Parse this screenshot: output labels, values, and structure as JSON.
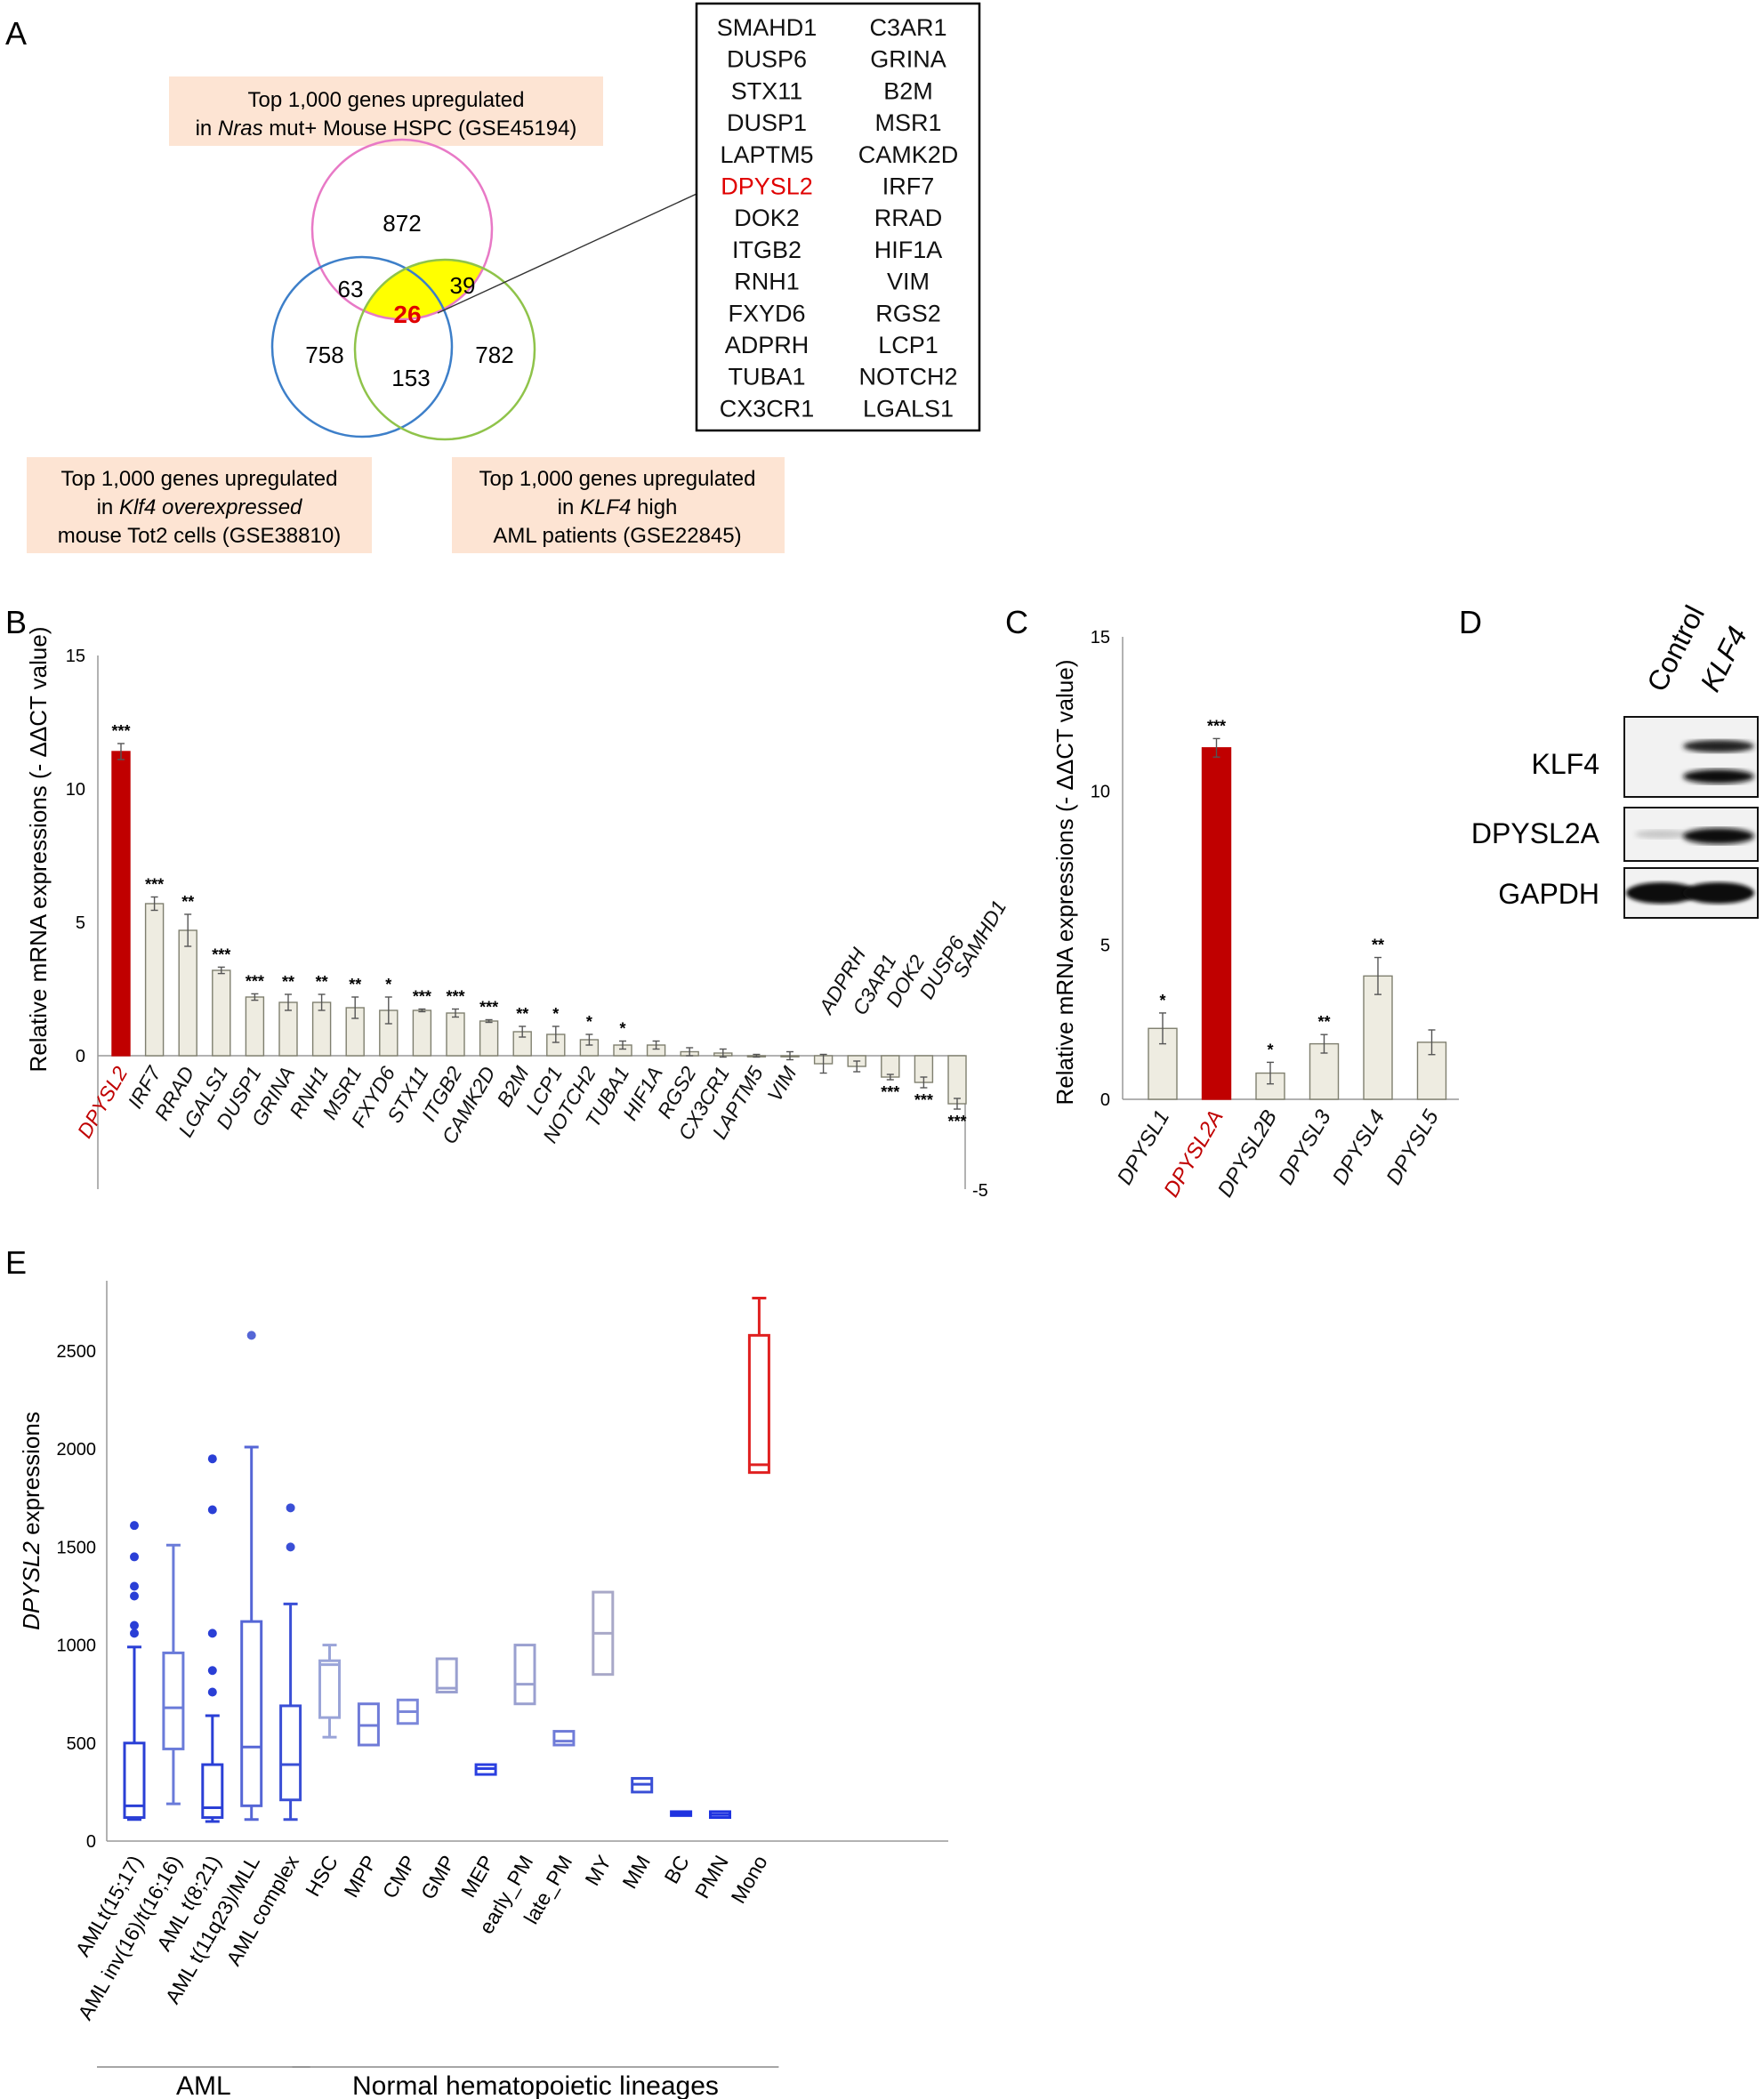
{
  "panels": {
    "A": "A",
    "B": "B",
    "C": "C",
    "D": "D",
    "E": "E"
  },
  "colors": {
    "red": "#c00000",
    "bar_fill": "#eeece1",
    "bar_stroke": "#7f7f6f",
    "pink": "#e879c6",
    "blue_circle": "#3d7fc9",
    "green": "#8fc34a",
    "yellow": "#ffff00",
    "label_bg": "#fde4d3",
    "box_blue": "#2e3ee0"
  },
  "panel_a": {
    "label_top": {
      "line1": "Top 1,000 genes upregulated",
      "line2_pre": "in ",
      "line2_ital": "Nras",
      "line2_post": " mut+ Mouse HSPC (GSE45194)"
    },
    "label_left": {
      "line1": "Top 1,000 genes upregulated",
      "line2_pre": "in ",
      "line2_ital": "Klf4 overexpressed",
      "line3": "mouse Tot2 cells (GSE38810)"
    },
    "label_right": {
      "line1": "Top 1,000 genes upregulated",
      "line2_pre": "in ",
      "line2_ital": "KLF4",
      "line2_post": " high",
      "line3": "AML patients (GSE22845)"
    },
    "venn": {
      "top_only": "872",
      "left_only": "758",
      "right_only": "782",
      "top_left": "63",
      "top_right": "39",
      "left_right": "153",
      "center": "26"
    },
    "gene_list": {
      "col1": [
        "SMAHD1",
        "DUSP6",
        "STX11",
        "DUSP1",
        "LAPTM5",
        "DPYSL2",
        "DOK2",
        "ITGB2",
        "RNH1",
        "FXYD6",
        "ADPRH",
        "TUBA1",
        "CX3CR1"
      ],
      "col2": [
        "C3AR1",
        "GRINA",
        "B2M",
        "MSR1",
        "CAMK2D",
        "IRF7",
        "RRAD",
        "HIF1A",
        "VIM",
        "RGS2",
        "LCP1",
        "NOTCH2",
        "LGALS1"
      ],
      "highlight": "DPYSL2"
    }
  },
  "panel_d": {
    "lanes": [
      "Control",
      "KLF4"
    ],
    "rows": [
      "KLF4",
      "DPYSL2A",
      "GAPDH"
    ]
  },
  "chart_data": [
    {
      "id": "B",
      "type": "bar",
      "ylabel": "Relative mRNA expressions (- ΔΔCT value)",
      "ylim": [
        -5,
        15
      ],
      "yticks": [
        "15",
        "10",
        "5",
        "0",
        "-5"
      ],
      "highlight": "DPYSL2",
      "categories": [
        "DPYSL2",
        "IRF7",
        "RRAD",
        "LGALS1",
        "DUSP1",
        "GRINA",
        "RNH1",
        "MSR1",
        "FXYD6",
        "STX11",
        "ITGB2",
        "CAMK2D",
        "B2M",
        "LCP1",
        "NOTCH2",
        "TUBA1",
        "HIF1A",
        "RGS2",
        "CX3CR1",
        "LAPTM5",
        "VIM",
        "ADPRH",
        "C3AR1",
        "DOK2",
        "DUSP6",
        "SAMHD1"
      ],
      "values": [
        11.4,
        5.7,
        4.7,
        3.2,
        2.2,
        2.0,
        2.0,
        1.8,
        1.7,
        1.7,
        1.6,
        1.3,
        0.9,
        0.8,
        0.6,
        0.4,
        0.4,
        0.15,
        0.1,
        0.0,
        0.0,
        -0.3,
        -0.4,
        -0.8,
        -1.0,
        -1.8
      ],
      "errors": [
        0.3,
        0.25,
        0.6,
        0.12,
        0.12,
        0.3,
        0.3,
        0.4,
        0.5,
        0.05,
        0.15,
        0.05,
        0.2,
        0.3,
        0.2,
        0.15,
        0.15,
        0.15,
        0.15,
        0.05,
        0.15,
        0.35,
        0.2,
        0.1,
        0.2,
        0.2
      ],
      "significance": [
        "***",
        "***",
        "**",
        "***",
        "***",
        "**",
        "**",
        "**",
        "*",
        "***",
        "***",
        "***",
        "**",
        "*",
        "*",
        "*",
        "",
        "",
        "",
        "",
        "",
        "",
        "",
        "***",
        "***",
        "***"
      ]
    },
    {
      "id": "C",
      "type": "bar",
      "ylabel": "Relative mRNA expressions (- ΔΔCT value)",
      "ylim": [
        0,
        15
      ],
      "yticks": [
        "15",
        "10",
        "5",
        "0"
      ],
      "highlight": "DPYSL2A",
      "categories": [
        "DPYSL1",
        "DPYSL2A",
        "DPYSL2B",
        "DPYSL3",
        "DPYSL4",
        "DPYSL5"
      ],
      "values": [
        2.3,
        11.4,
        0.85,
        1.8,
        4.0,
        1.85
      ],
      "errors": [
        0.5,
        0.3,
        0.35,
        0.3,
        0.6,
        0.4
      ],
      "significance": [
        "*",
        "***",
        "*",
        "**",
        "**",
        ""
      ]
    },
    {
      "id": "E",
      "type": "box",
      "ylabel_ital": "DPYSL2",
      "ylabel_rest": " expressions",
      "ylim": [
        0,
        2800
      ],
      "yticks": [
        "2500",
        "2000",
        "1500",
        "1000",
        "500",
        "0"
      ],
      "groups": [
        {
          "label": "AML",
          "from": 0,
          "to": 4
        },
        {
          "label": "Normal hematopoietic lineages",
          "from": 5,
          "to": 16
        }
      ],
      "categories": [
        "AMLt(15;17)",
        "AML inv(16)/t(16;16)",
        "AML t(8;21)",
        "AML t(11q23)/MLL",
        "AML complex",
        "HSC",
        "MPP",
        "CMP",
        "GMP",
        "MEP",
        "early_PM",
        "late_PM",
        "MY",
        "MM",
        "BC",
        "PMN",
        "Mono"
      ],
      "boxes": [
        {
          "min": 110,
          "q1": 120,
          "median": 180,
          "q3": 500,
          "max": 990,
          "outliers": [
            1060,
            1100,
            1250,
            1300,
            1450,
            1610
          ]
        },
        {
          "min": 190,
          "q1": 470,
          "median": 680,
          "q3": 960,
          "max": 1510,
          "outliers": []
        },
        {
          "min": 100,
          "q1": 120,
          "median": 170,
          "q3": 390,
          "max": 640,
          "outliers": [
            760,
            870,
            1060,
            1690,
            1950
          ]
        },
        {
          "min": 110,
          "q1": 180,
          "median": 480,
          "q3": 1120,
          "max": 2010,
          "outliers": [
            2580
          ]
        },
        {
          "min": 110,
          "q1": 210,
          "median": 390,
          "q3": 690,
          "max": 1210,
          "outliers": [
            1500,
            1700
          ]
        },
        {
          "min": 530,
          "q1": 630,
          "median": 900,
          "q3": 920,
          "max": 1000,
          "outliers": []
        },
        {
          "min": 490,
          "q1": 490,
          "median": 590,
          "q3": 700,
          "max": 700,
          "outliers": []
        },
        {
          "min": 600,
          "q1": 600,
          "median": 660,
          "q3": 720,
          "max": 720,
          "outliers": []
        },
        {
          "min": 760,
          "q1": 760,
          "median": 780,
          "q3": 930,
          "max": 930,
          "outliers": []
        },
        {
          "min": 340,
          "q1": 340,
          "median": 370,
          "q3": 390,
          "max": 390,
          "outliers": []
        },
        {
          "min": 700,
          "q1": 700,
          "median": 800,
          "q3": 1000,
          "max": 1000,
          "outliers": []
        },
        {
          "min": 490,
          "q1": 490,
          "median": 510,
          "q3": 560,
          "max": 560,
          "outliers": []
        },
        {
          "min": 850,
          "q1": 850,
          "median": 1060,
          "q3": 1270,
          "max": 1270,
          "outliers": []
        },
        {
          "min": 250,
          "q1": 250,
          "median": 290,
          "q3": 320,
          "max": 320,
          "outliers": []
        },
        {
          "min": 130,
          "q1": 130,
          "median": 140,
          "q3": 150,
          "max": 150,
          "outliers": []
        },
        {
          "min": 120,
          "q1": 120,
          "median": 135,
          "q3": 150,
          "max": 150,
          "outliers": []
        },
        {
          "min": 1880,
          "q1": 1880,
          "median": 1920,
          "q3": 2580,
          "max": 2770,
          "outliers": []
        }
      ],
      "box_colors": [
        "#2a3fd6",
        "#6a7bd9",
        "#2a3fd6",
        "#5566d6",
        "#3a4fd6",
        "#9aa4d8",
        "#6f7bd8",
        "#7b87da",
        "#9aa0d0",
        "#2a3fe0",
        "#9aa0d0",
        "#6f7bd8",
        "#a8a8c8",
        "#3a4fd6",
        "#1f33e0",
        "#1f33e0",
        "#e02020"
      ]
    }
  ]
}
